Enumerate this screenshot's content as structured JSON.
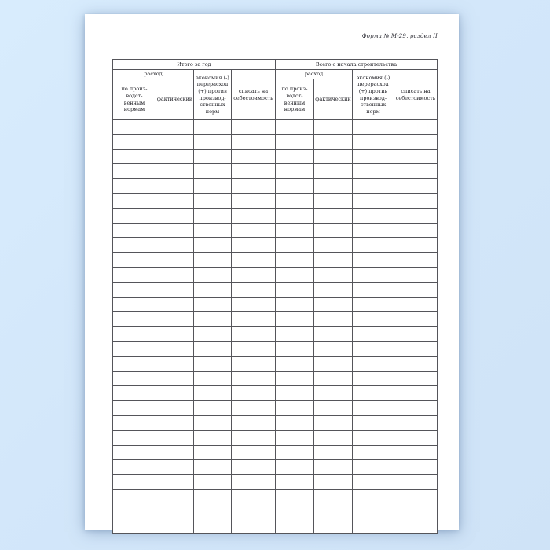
{
  "page": {
    "form_label": "Форма № М-29, раздел II"
  },
  "colors": {
    "background": "#d3e7fa",
    "paper": "#ffffff",
    "table_border": "#55555a",
    "text": "#1c1c22"
  },
  "table": {
    "sections": [
      {
        "title": "Итого за год",
        "expense_group": "расход",
        "columns": [
          "по произ-\nводст-\nвенным\nнормам",
          "фактический",
          "экономия (-)\nперерасход\n(+) против\nпроизвод-\nственных\nнорм",
          "списать на\nсебестоимость"
        ]
      },
      {
        "title": "Всего с начала строительства",
        "expense_group": "расход",
        "columns": [
          "по произ-\nводст-\nвенным\nнормам",
          "фактический",
          "экономия (-)\nперерасход\n(+) против\nпроизвод-\nственных\nнорм",
          "списать на\nсебестоимость"
        ]
      }
    ],
    "body_rows": 28,
    "body_cols": 8,
    "body_cell_value": ""
  }
}
